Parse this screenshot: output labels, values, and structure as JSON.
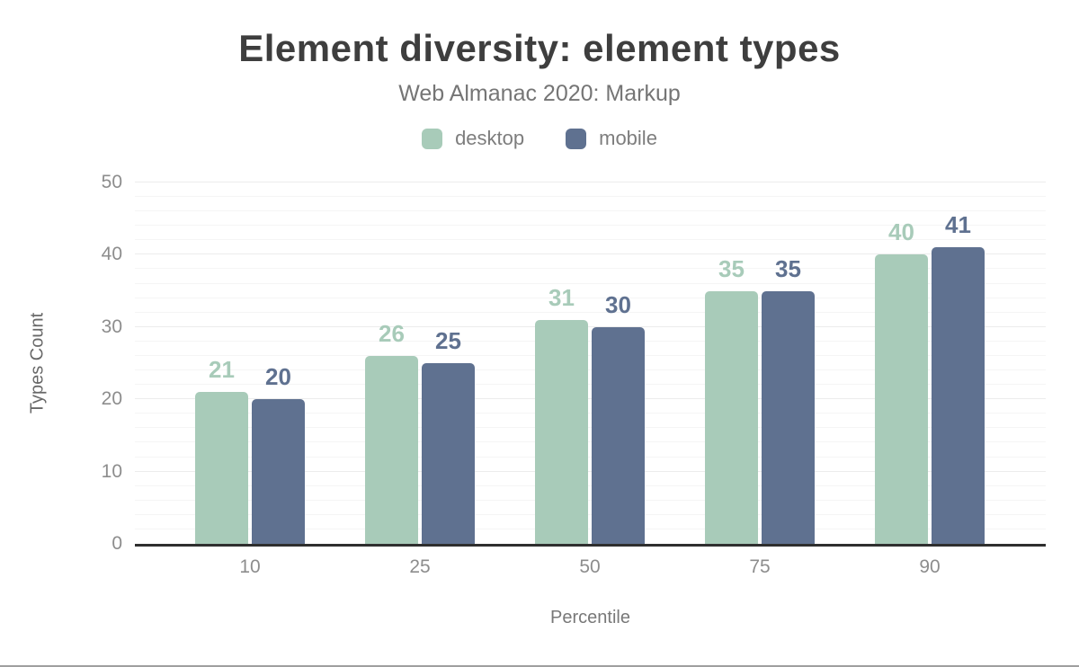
{
  "chart_data": {
    "type": "bar",
    "title": "Element diversity: element types",
    "subtitle": "Web Almanac 2020: Markup",
    "categories": [
      "10",
      "25",
      "50",
      "75",
      "90"
    ],
    "series": [
      {
        "name": "desktop",
        "color": "#a8cbb9",
        "values": [
          21,
          26,
          31,
          35,
          40
        ]
      },
      {
        "name": "mobile",
        "color": "#5f7190",
        "values": [
          20,
          25,
          30,
          35,
          41
        ]
      }
    ],
    "xlabel": "Percentile",
    "ylabel": "Types Count",
    "ylim": [
      0,
      50
    ],
    "yticks": [
      0,
      10,
      20,
      30,
      40,
      50
    ],
    "minor_grid_step": 2,
    "grid": true,
    "legend_position": "top",
    "data_labels": true
  }
}
